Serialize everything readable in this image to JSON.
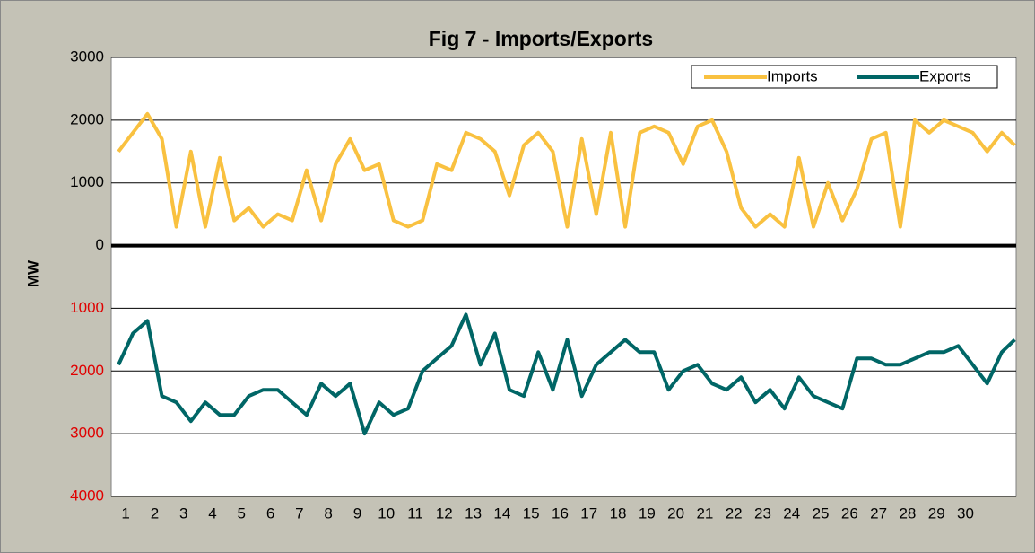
{
  "chart_data": {
    "type": "line",
    "title": "Fig 7 - Imports/Exports",
    "y_label": "MW",
    "x": [
      0.75,
      1.25,
      1.75,
      2.25,
      2.75,
      3.25,
      3.75,
      4.25,
      4.75,
      5.25,
      5.75,
      6.25,
      6.75,
      7.25,
      7.75,
      8.25,
      8.75,
      9.25,
      9.75,
      10.25,
      10.75,
      11.25,
      11.75,
      12.25,
      12.75,
      13.25,
      13.75,
      14.25,
      14.75,
      15.25,
      15.75,
      16.25,
      16.75,
      17.25,
      17.75,
      18.25,
      18.75,
      19.25,
      19.75,
      20.25,
      20.75,
      21.25,
      21.75,
      22.25,
      22.75,
      23.25,
      23.75,
      24.25,
      24.75,
      25.25,
      25.75,
      26.25,
      26.75,
      27.25,
      27.75,
      28.25,
      28.75,
      29.25,
      29.75,
      30.25,
      30.75,
      31.25,
      31.7
    ],
    "series": [
      {
        "name": "Imports",
        "color": "#f9c140",
        "values": [
          1500,
          1800,
          2100,
          1700,
          300,
          1500,
          300,
          1400,
          400,
          600,
          300,
          500,
          400,
          1200,
          400,
          1300,
          1700,
          1200,
          1300,
          400,
          300,
          400,
          1300,
          1200,
          1800,
          1700,
          1500,
          800,
          1600,
          1800,
          1500,
          300,
          1700,
          500,
          1800,
          300,
          1800,
          1900,
          1800,
          1300,
          1900,
          2000,
          1500,
          600,
          300,
          500,
          300,
          1400,
          300,
          1000,
          400,
          900,
          1700,
          1800,
          300,
          2000,
          1800,
          2000,
          1900,
          1800,
          1500,
          1800,
          1600
        ]
      },
      {
        "name": "Exports",
        "color": "#006666",
        "values": [
          -1900,
          -1400,
          -1200,
          -2400,
          -2500,
          -2800,
          -2500,
          -2700,
          -2700,
          -2400,
          -2300,
          -2300,
          -2500,
          -2700,
          -2200,
          -2400,
          -2200,
          -3000,
          -2500,
          -2700,
          -2600,
          -2000,
          -1800,
          -1600,
          -1100,
          -1900,
          -1400,
          -2300,
          -2400,
          -1700,
          -2300,
          -1500,
          -2400,
          -1900,
          -1700,
          -1500,
          -1700,
          -1700,
          -2300,
          -2000,
          -1900,
          -2200,
          -2300,
          -2100,
          -2500,
          -2300,
          -2600,
          -2100,
          -2400,
          -2500,
          -2600,
          -1800,
          -1800,
          -1900,
          -1900,
          -1800,
          -1700,
          -1700,
          -1600,
          -1900,
          -2200,
          -1700,
          -1500
        ]
      }
    ],
    "xlim": [
      0.5,
      31.75
    ],
    "xticks": [
      1,
      2,
      3,
      4,
      5,
      6,
      7,
      8,
      9,
      10,
      11,
      12,
      13,
      14,
      15,
      16,
      17,
      18,
      19,
      20,
      21,
      22,
      23,
      24,
      25,
      26,
      27,
      28,
      29,
      30
    ],
    "ylim": [
      -4000,
      3000
    ],
    "yticks": [
      {
        "value": -4000,
        "label": "4000"
      },
      {
        "value": -3000,
        "label": "3000"
      },
      {
        "value": -2000,
        "label": "2000"
      },
      {
        "value": -1000,
        "label": "1000"
      },
      0,
      1000,
      2000,
      3000
    ],
    "grid": true,
    "legend": "top-right"
  }
}
